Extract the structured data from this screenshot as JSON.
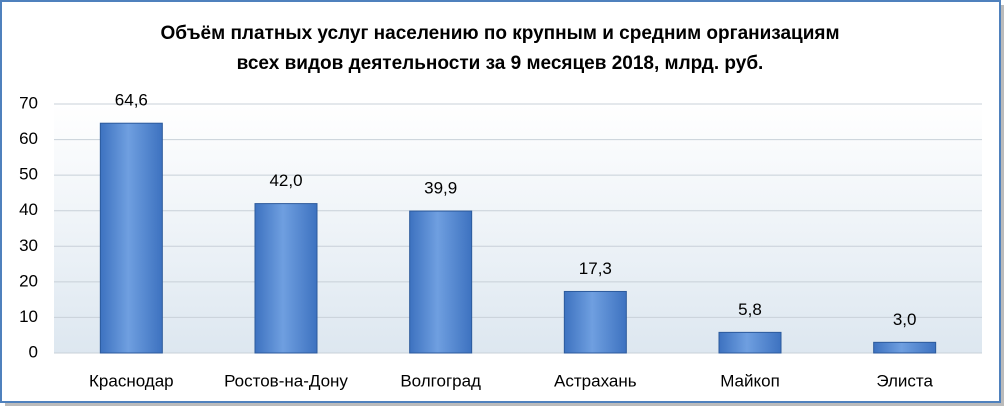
{
  "chart_data": {
    "type": "bar",
    "title": [
      "Объём платных услуг населению по крупным и средним организациям",
      "всех видов деятельности за 9 месяцев 2018, млрд. руб."
    ],
    "categories": [
      "Краснодар",
      "Ростов-на-Дону",
      "Волгоград",
      "Астрахань",
      "Майкоп",
      "Элиста"
    ],
    "values": [
      64.6,
      42.0,
      39.9,
      17.3,
      5.8,
      3.0
    ],
    "value_labels": [
      "64,6",
      "42,0",
      "39,9",
      "17,3",
      "5,8",
      "3,0"
    ],
    "color": "#3d72c0",
    "ylim": [
      0,
      70
    ],
    "yticks": [
      0,
      10,
      20,
      30,
      40,
      50,
      60,
      70
    ],
    "grid": true
  }
}
